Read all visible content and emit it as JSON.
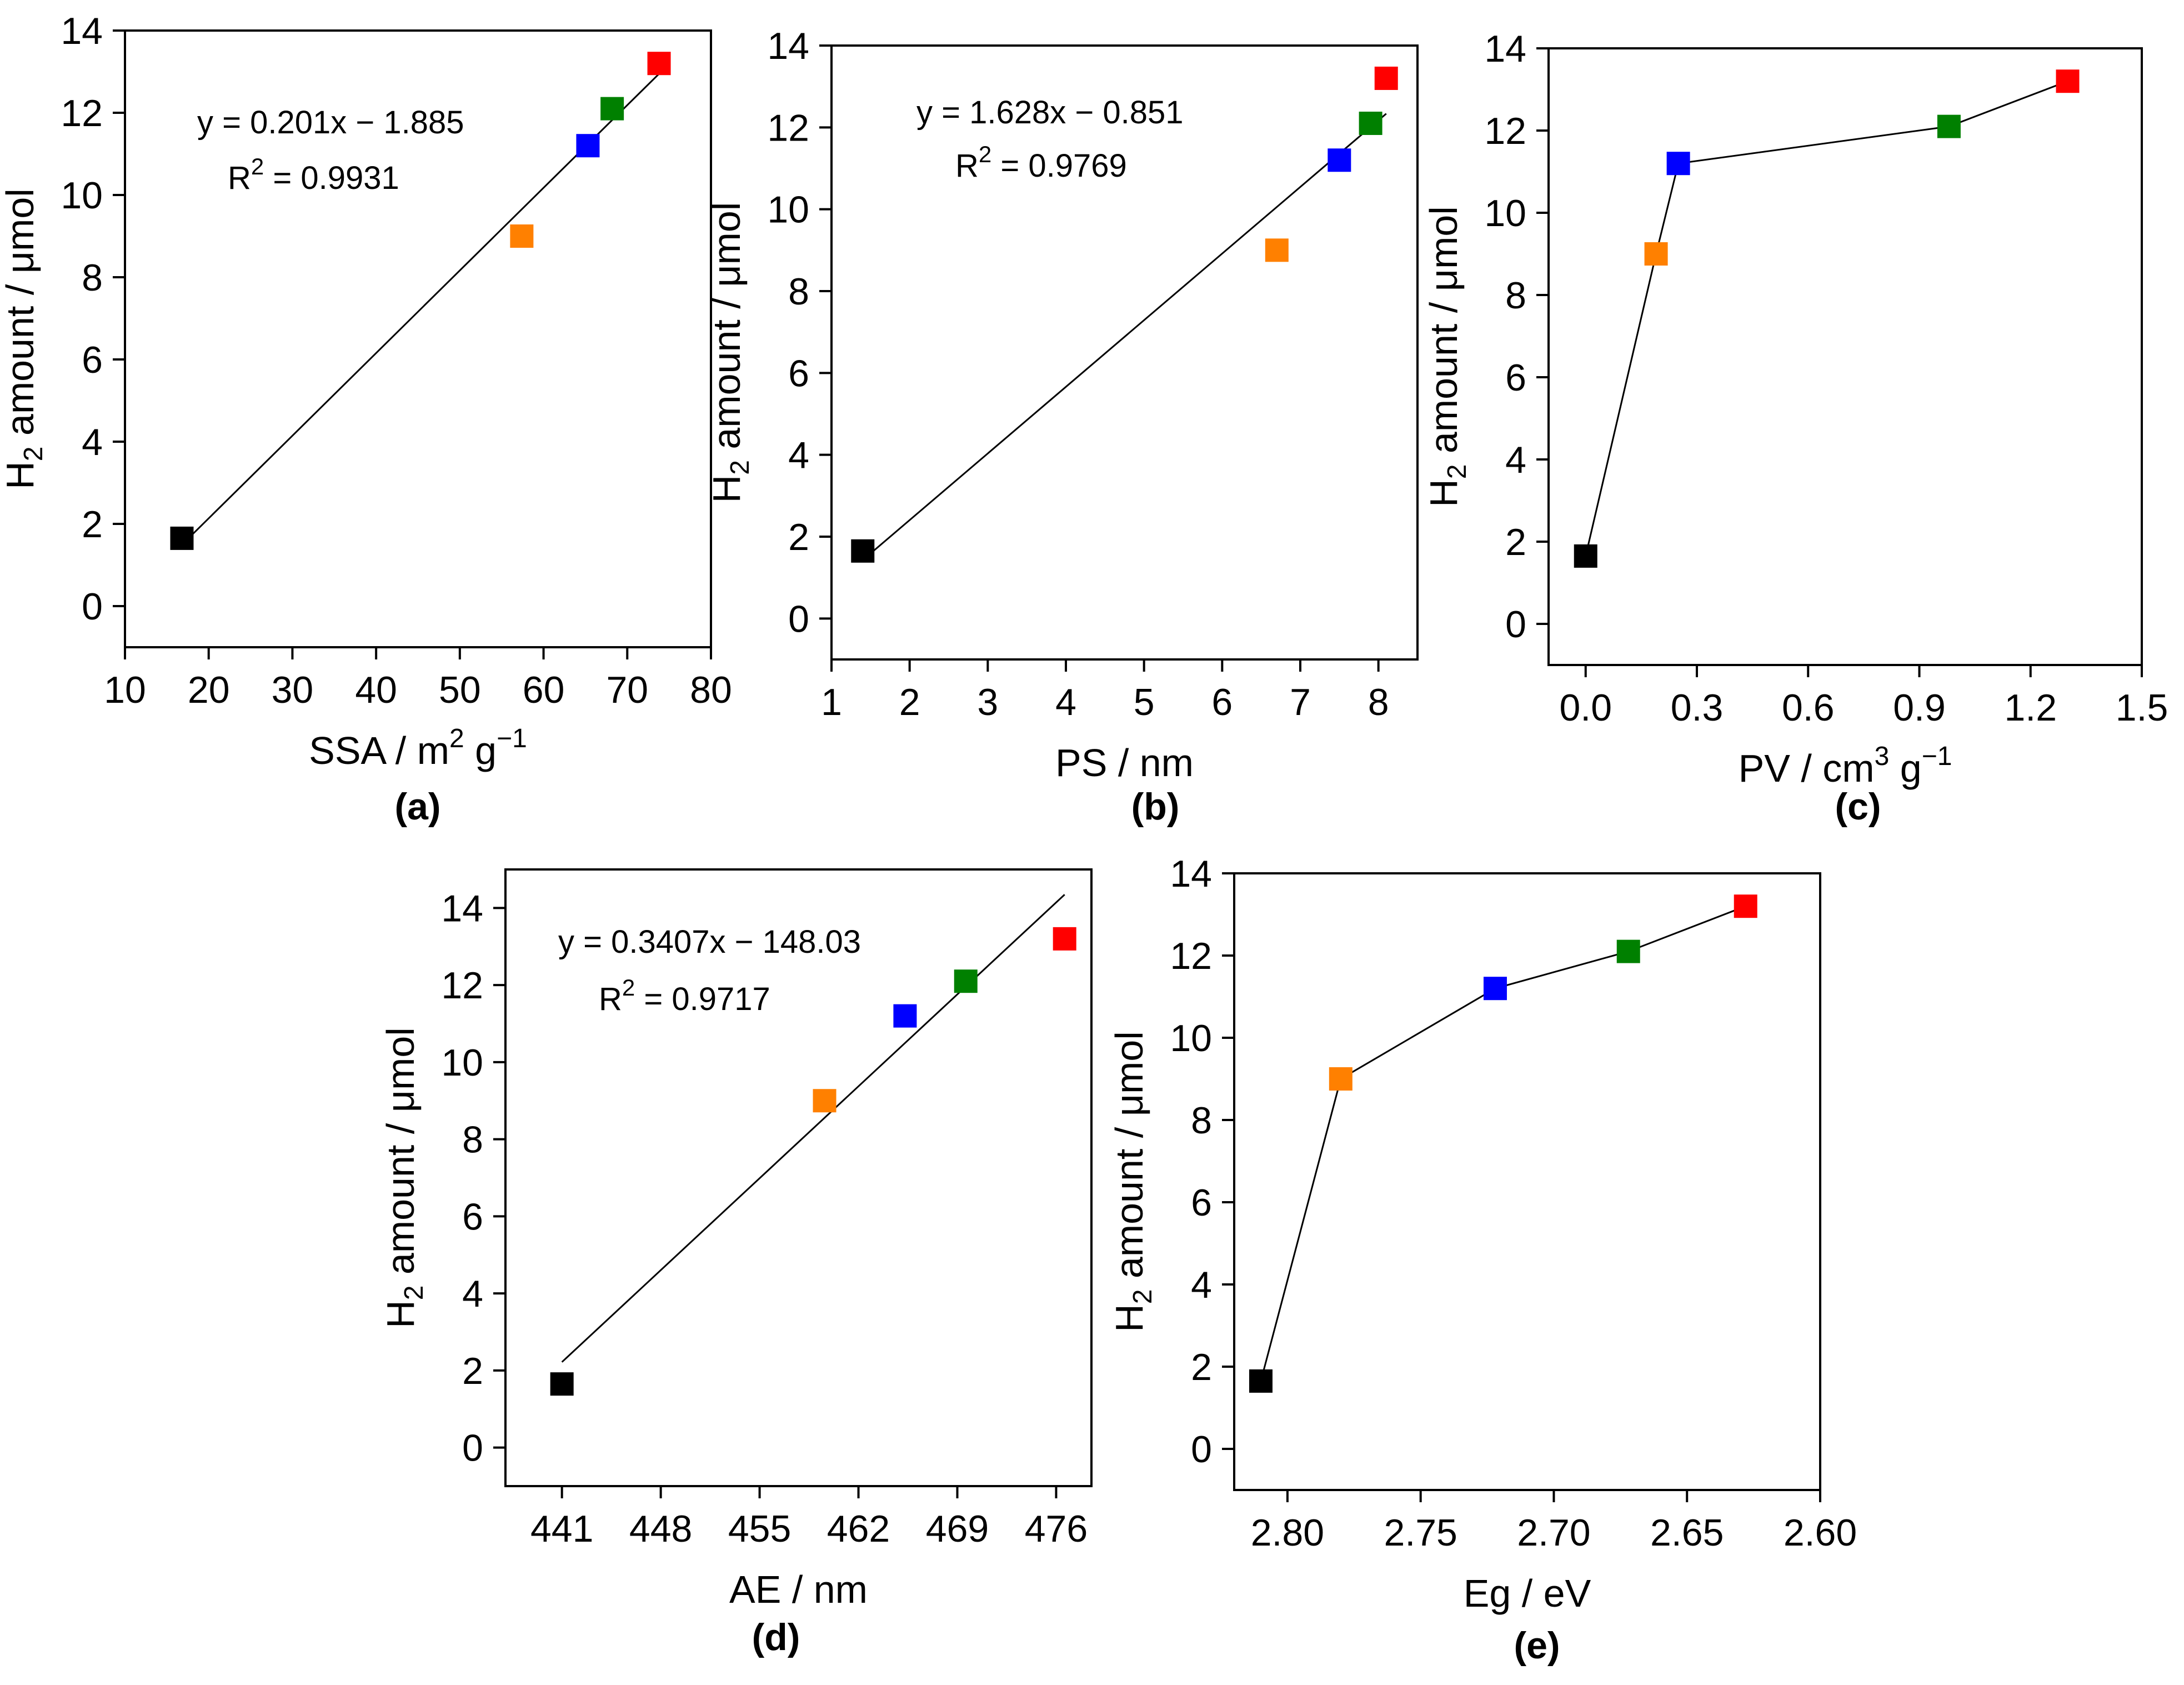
{
  "figure": {
    "y_axis_title": {
      "main": "H",
      "sub": "2",
      "rest": " amount / μmol"
    }
  },
  "chart_data": [
    {
      "id": "a",
      "panel_label": "(a)",
      "type": "scatter",
      "title": "",
      "xlabel": {
        "pre": "SSA / m",
        "sup": "2",
        "mid": " g",
        "sup2": "−1"
      },
      "ylabel": "H2 amount / μmol",
      "xlim": [
        10,
        80
      ],
      "ylim": [
        -1,
        14
      ],
      "xticks": [
        10,
        20,
        30,
        40,
        50,
        60,
        70,
        80
      ],
      "xtick_labels": [
        "10",
        "20",
        "30",
        "40",
        "50",
        "60",
        "70",
        "80"
      ],
      "yticks": [
        0,
        2,
        4,
        6,
        8,
        10,
        12,
        14
      ],
      "ytick_labels": [
        "0",
        "2",
        "4",
        "6",
        "8",
        "10",
        "12",
        "14"
      ],
      "points": [
        {
          "x": 16.8,
          "y": 1.65,
          "color": "#000000"
        },
        {
          "x": 57.4,
          "y": 9.0,
          "color": "#ff8000"
        },
        {
          "x": 65.3,
          "y": 11.2,
          "color": "#0000ff"
        },
        {
          "x": 68.2,
          "y": 12.1,
          "color": "#008000"
        },
        {
          "x": 73.8,
          "y": 13.2,
          "color": "#ff0000"
        }
      ],
      "fit": {
        "slope": 0.201,
        "intercept": -1.885,
        "x_from": 16.8,
        "x_to": 73.8
      },
      "connect": false,
      "equation": "y = 0.201x − 1.885",
      "r2": {
        "pre": "R",
        "sup": "2",
        "post": " = 0.9931"
      }
    },
    {
      "id": "b",
      "panel_label": "(b)",
      "type": "scatter",
      "title": "",
      "xlabel": {
        "pre": "PS / nm",
        "sup": "",
        "mid": "",
        "sup2": ""
      },
      "ylabel": "H2 amount / μmol",
      "xlim": [
        1,
        8.5
      ],
      "ylim": [
        -1,
        14
      ],
      "xticks": [
        1,
        2,
        3,
        4,
        5,
        6,
        7,
        8
      ],
      "xtick_labels": [
        "1",
        "2",
        "3",
        "4",
        "5",
        "6",
        "7",
        "8"
      ],
      "yticks": [
        0,
        2,
        4,
        6,
        8,
        10,
        12,
        14
      ],
      "ytick_labels": [
        "0",
        "2",
        "4",
        "6",
        "8",
        "10",
        "12",
        "14"
      ],
      "points": [
        {
          "x": 1.4,
          "y": 1.65,
          "color": "#000000"
        },
        {
          "x": 6.7,
          "y": 9.0,
          "color": "#ff8000"
        },
        {
          "x": 7.5,
          "y": 11.2,
          "color": "#0000ff"
        },
        {
          "x": 7.9,
          "y": 12.1,
          "color": "#008000"
        },
        {
          "x": 8.1,
          "y": 13.2,
          "color": "#ff0000"
        }
      ],
      "fit": {
        "slope": 1.628,
        "intercept": -0.851,
        "x_from": 1.4,
        "x_to": 8.1
      },
      "connect": false,
      "equation": "y = 1.628x − 0.851",
      "r2": {
        "pre": "R",
        "sup": "2",
        "post": " = 0.9769"
      }
    },
    {
      "id": "c",
      "panel_label": "(c)",
      "type": "line",
      "title": "",
      "xlabel": {
        "pre": "PV / cm",
        "sup": "3",
        "mid": " g",
        "sup2": "−1"
      },
      "ylabel": "H2 amount / μmol",
      "xlim": [
        -0.1,
        1.5
      ],
      "ylim": [
        -1,
        14
      ],
      "xticks": [
        0,
        0.3,
        0.6,
        0.9,
        1.2,
        1.5
      ],
      "xtick_labels": [
        "0.0",
        "0.3",
        "0.6",
        "0.9",
        "1.2",
        "1.5"
      ],
      "yticks": [
        0,
        2,
        4,
        6,
        8,
        10,
        12,
        14
      ],
      "ytick_labels": [
        "0",
        "2",
        "4",
        "6",
        "8",
        "10",
        "12",
        "14"
      ],
      "points": [
        {
          "x": 0.0,
          "y": 1.65,
          "color": "#000000"
        },
        {
          "x": 0.19,
          "y": 9.0,
          "color": "#ff8000"
        },
        {
          "x": 0.25,
          "y": 11.2,
          "color": "#0000ff"
        },
        {
          "x": 0.98,
          "y": 12.1,
          "color": "#008000"
        },
        {
          "x": 1.3,
          "y": 13.2,
          "color": "#ff0000"
        }
      ],
      "fit": null,
      "connect": true,
      "equation": "",
      "r2": null
    },
    {
      "id": "d",
      "panel_label": "(d)",
      "type": "scatter",
      "title": "",
      "xlabel": {
        "pre": "AE / nm",
        "sup": "",
        "mid": "",
        "sup2": ""
      },
      "ylabel": "H2 amount / μmol",
      "xlim": [
        437,
        478.5
      ],
      "ylim": [
        -1,
        15
      ],
      "xticks": [
        441,
        448,
        455,
        462,
        469,
        476
      ],
      "xtick_labels": [
        "441",
        "448",
        "455",
        "462",
        "469",
        "476"
      ],
      "yticks": [
        0,
        2,
        4,
        6,
        8,
        10,
        12,
        14
      ],
      "ytick_labels": [
        "0",
        "2",
        "4",
        "6",
        "8",
        "10",
        "12",
        "14"
      ],
      "points": [
        {
          "x": 441.0,
          "y": 1.65,
          "color": "#000000"
        },
        {
          "x": 459.6,
          "y": 9.0,
          "color": "#ff8000"
        },
        {
          "x": 465.3,
          "y": 11.2,
          "color": "#0000ff"
        },
        {
          "x": 469.6,
          "y": 12.1,
          "color": "#008000"
        },
        {
          "x": 476.6,
          "y": 13.2,
          "color": "#ff0000"
        }
      ],
      "fit": {
        "slope": 0.3407,
        "intercept": -148.03,
        "x_from": 441.0,
        "x_to": 476.6
      },
      "connect": false,
      "equation": "y = 0.3407x − 148.03",
      "r2": {
        "pre": "R",
        "sup": "2",
        "post": " = 0.9717"
      }
    },
    {
      "id": "e",
      "panel_label": "(e)",
      "type": "line",
      "title": "",
      "xlabel": {
        "pre": "Eg / eV",
        "sup": "",
        "mid": "",
        "sup2": ""
      },
      "ylabel": "H2 amount / μmol",
      "xlim": [
        2.82,
        2.6
      ],
      "ylim": [
        -1,
        14
      ],
      "xticks": [
        2.8,
        2.75,
        2.7,
        2.65,
        2.6
      ],
      "xtick_labels": [
        "2.80",
        "2.75",
        "2.70",
        "2.65",
        "2.60"
      ],
      "yticks": [
        0,
        2,
        4,
        6,
        8,
        10,
        12,
        14
      ],
      "ytick_labels": [
        "0",
        "2",
        "4",
        "6",
        "8",
        "10",
        "12",
        "14"
      ],
      "points": [
        {
          "x": 2.81,
          "y": 1.65,
          "color": "#000000"
        },
        {
          "x": 2.78,
          "y": 9.0,
          "color": "#ff8000"
        },
        {
          "x": 2.722,
          "y": 11.2,
          "color": "#0000ff"
        },
        {
          "x": 2.672,
          "y": 12.1,
          "color": "#008000"
        },
        {
          "x": 2.628,
          "y": 13.2,
          "color": "#ff0000"
        }
      ],
      "fit": null,
      "connect": true,
      "equation": "",
      "r2": null
    }
  ]
}
